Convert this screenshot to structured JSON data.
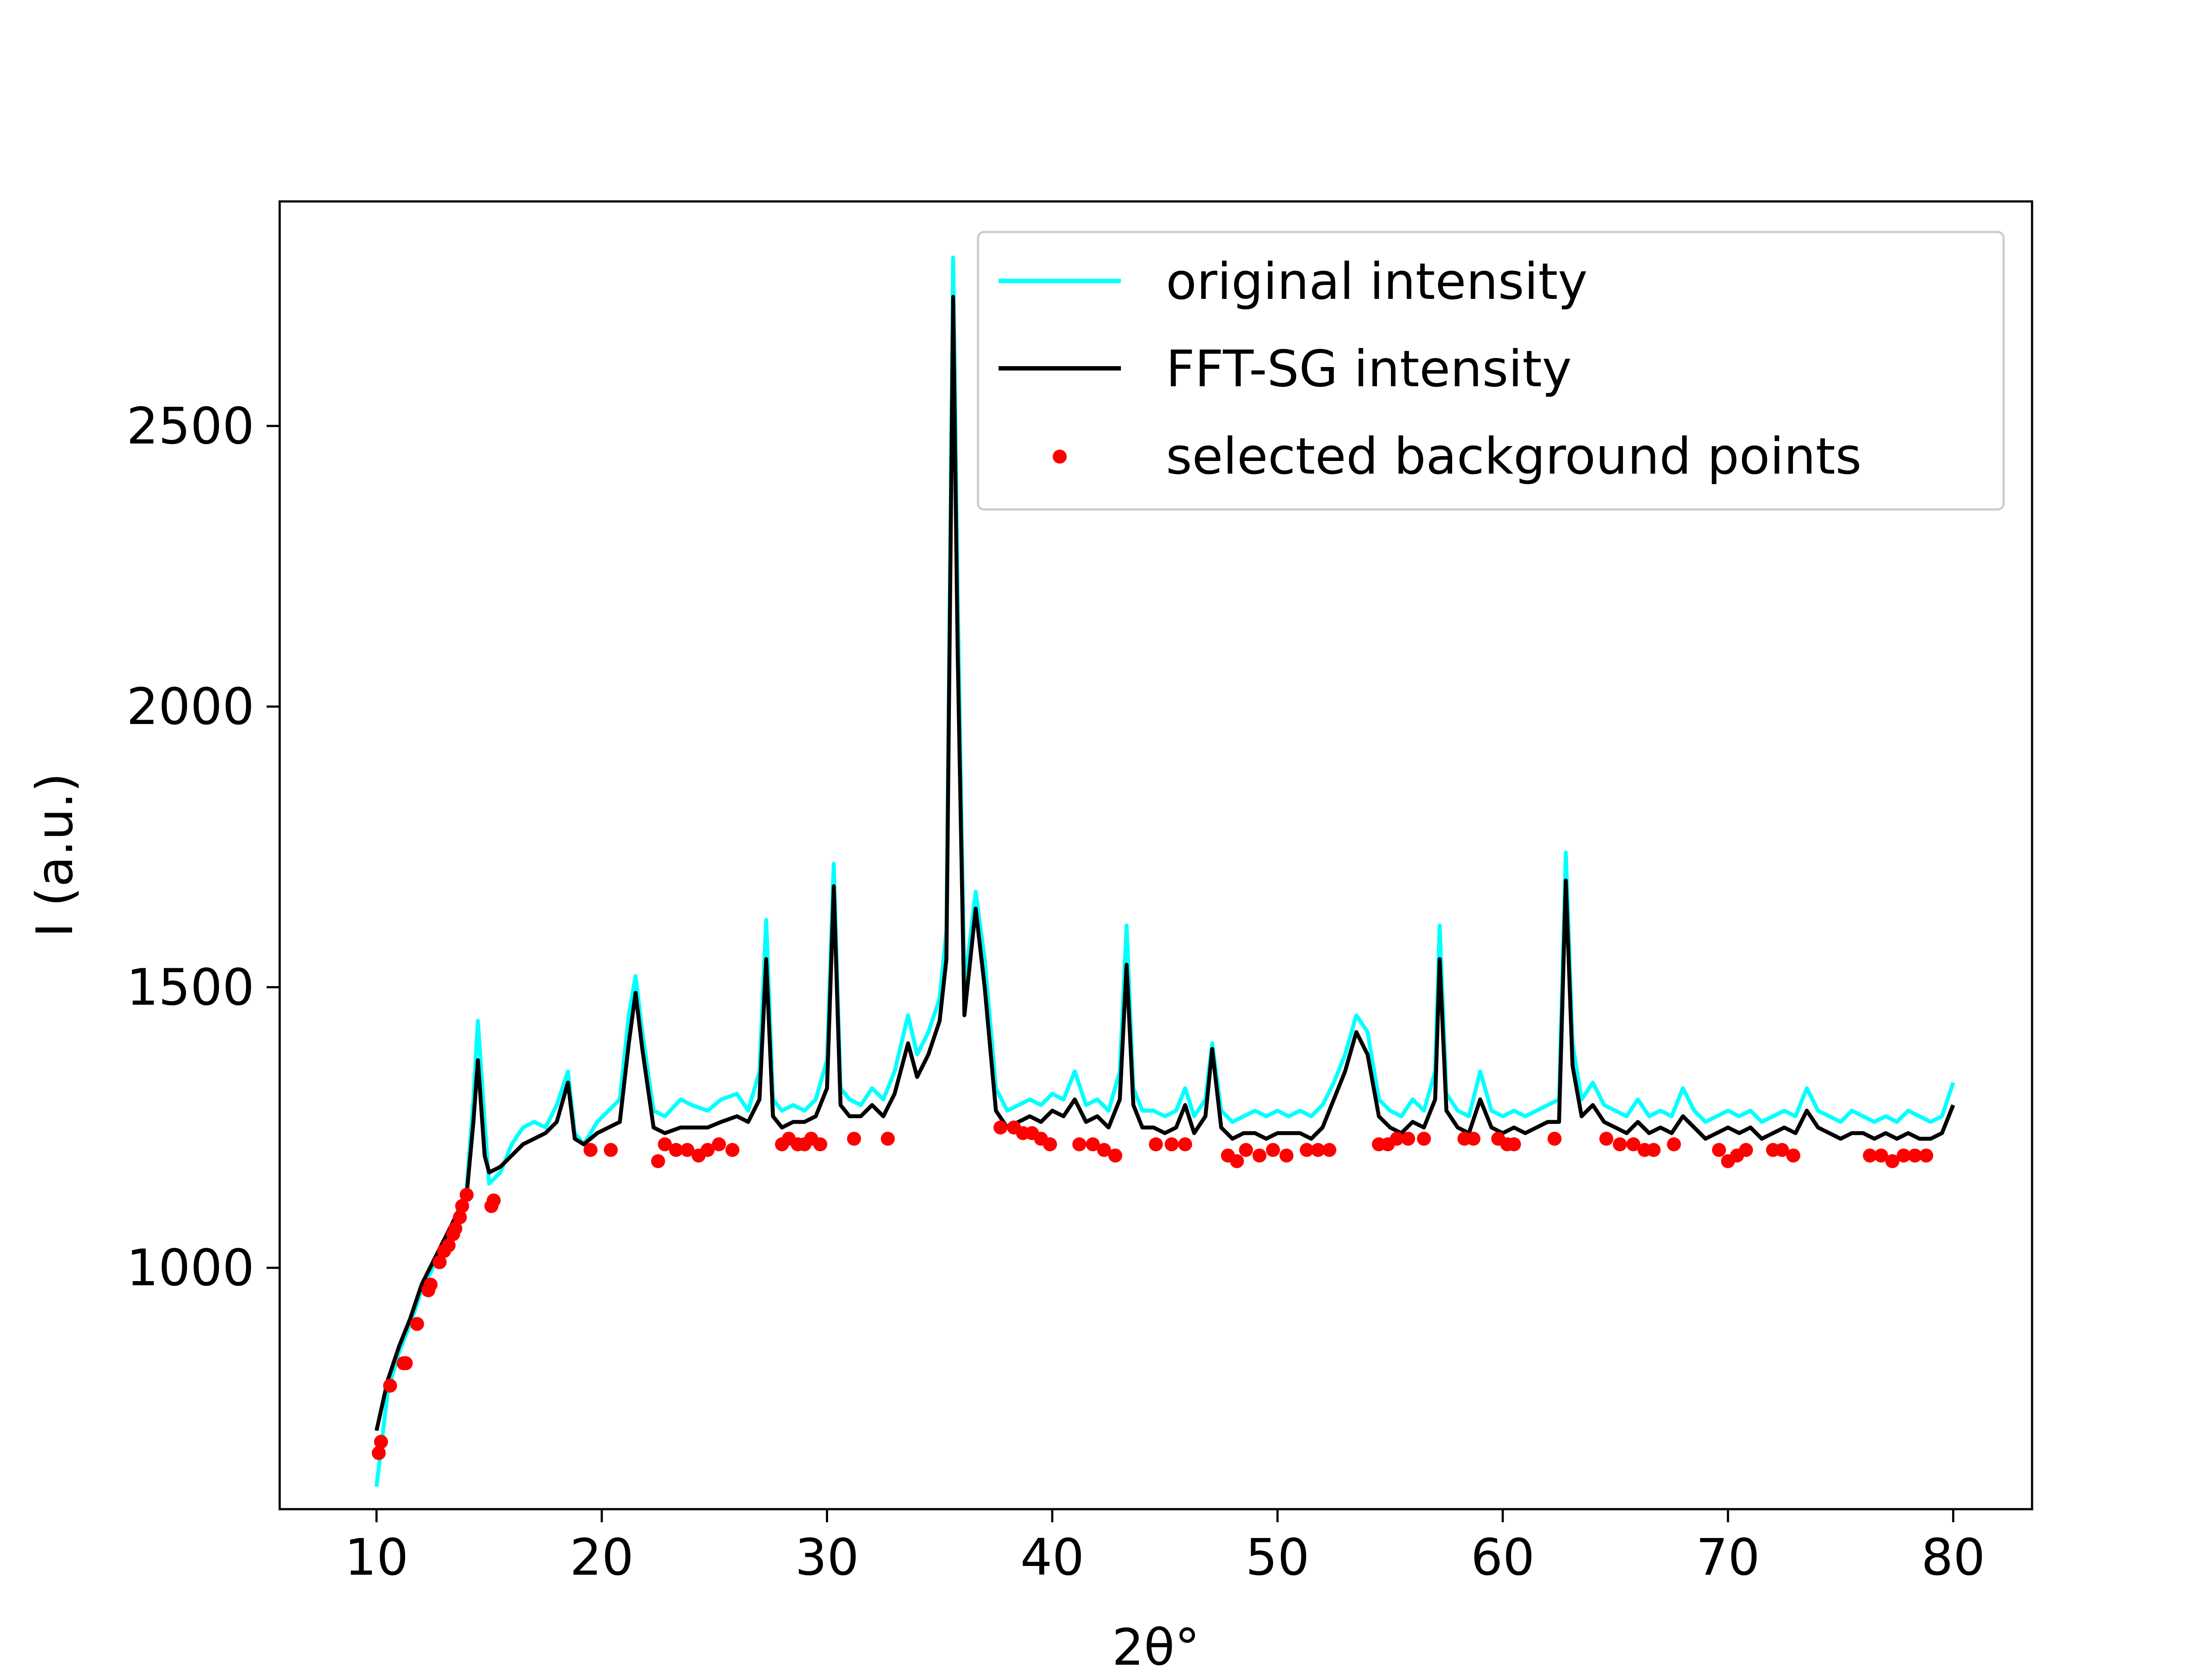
{
  "chart_data": {
    "type": "line",
    "title": "",
    "xlabel": "2θ°",
    "ylabel": "I (a.u.)",
    "xlim": [
      5.7,
      83.5
    ],
    "ylim": [
      570,
      2900
    ],
    "xticks": [
      10,
      20,
      30,
      40,
      50,
      60,
      70,
      80
    ],
    "yticks": [
      1000,
      1500,
      2000,
      2500
    ],
    "grid": false,
    "legend_position": "top-right",
    "series": [
      {
        "name": "original intensity",
        "kind": "line",
        "color": "#00ffff",
        "x": [
          10.0,
          10.5,
          11.0,
          11.5,
          12.0,
          12.5,
          13.0,
          13.5,
          14.0,
          14.3,
          14.5,
          14.8,
          15.0,
          15.5,
          16.0,
          16.5,
          17.0,
          17.5,
          18.0,
          18.5,
          18.8,
          19.2,
          19.8,
          20.3,
          20.8,
          21.2,
          21.5,
          21.8,
          22.3,
          22.8,
          23.5,
          24.0,
          24.7,
          25.3,
          26.0,
          26.5,
          27.0,
          27.3,
          27.6,
          28.0,
          28.5,
          29.0,
          29.5,
          30.0,
          30.3,
          30.6,
          31.0,
          31.5,
          32.0,
          32.5,
          33.0,
          33.6,
          34.0,
          34.5,
          35.0,
          35.3,
          35.6,
          35.8,
          36.1,
          36.6,
          37.0,
          37.5,
          38.0,
          38.5,
          39.0,
          39.5,
          40.0,
          40.5,
          41.0,
          41.5,
          42.0,
          42.5,
          43.0,
          43.3,
          43.6,
          44.0,
          44.5,
          45.0,
          45.5,
          45.9,
          46.3,
          46.8,
          47.1,
          47.5,
          48.0,
          48.5,
          49.0,
          49.5,
          50.0,
          50.5,
          51.0,
          51.5,
          52.0,
          52.5,
          53.0,
          53.5,
          54.0,
          54.5,
          55.0,
          55.5,
          56.0,
          56.5,
          57.0,
          57.2,
          57.5,
          58.0,
          58.5,
          59.0,
          59.5,
          60.0,
          60.5,
          61.0,
          61.5,
          62.0,
          62.5,
          62.8,
          63.1,
          63.5,
          64.0,
          64.5,
          65.0,
          65.5,
          66.0,
          66.5,
          67.0,
          67.5,
          68.0,
          68.5,
          69.0,
          69.5,
          70.0,
          70.5,
          71.0,
          71.5,
          72.0,
          72.5,
          73.0,
          73.5,
          74.0,
          74.5,
          75.0,
          75.5,
          76.0,
          76.5,
          77.0,
          77.5,
          78.0,
          78.5,
          79.0,
          79.5,
          80.0
        ],
        "y": [
          610,
          780,
          850,
          900,
          960,
          1000,
          1040,
          1090,
          1140,
          1300,
          1440,
          1260,
          1150,
          1170,
          1220,
          1250,
          1260,
          1250,
          1290,
          1350,
          1240,
          1220,
          1260,
          1280,
          1300,
          1450,
          1520,
          1420,
          1280,
          1270,
          1300,
          1290,
          1280,
          1300,
          1310,
          1280,
          1350,
          1620,
          1300,
          1280,
          1290,
          1280,
          1300,
          1370,
          1720,
          1320,
          1300,
          1290,
          1320,
          1300,
          1350,
          1450,
          1380,
          1420,
          1480,
          1600,
          2800,
          2200,
          1500,
          1670,
          1550,
          1320,
          1280,
          1290,
          1300,
          1290,
          1310,
          1300,
          1350,
          1290,
          1300,
          1280,
          1350,
          1610,
          1320,
          1280,
          1280,
          1270,
          1280,
          1320,
          1270,
          1300,
          1400,
          1280,
          1260,
          1270,
          1280,
          1270,
          1280,
          1270,
          1280,
          1270,
          1290,
          1330,
          1380,
          1450,
          1420,
          1300,
          1280,
          1270,
          1300,
          1280,
          1350,
          1610,
          1310,
          1280,
          1270,
          1350,
          1280,
          1270,
          1280,
          1270,
          1280,
          1290,
          1300,
          1740,
          1400,
          1300,
          1330,
          1290,
          1280,
          1270,
          1300,
          1270,
          1280,
          1270,
          1320,
          1280,
          1260,
          1270,
          1280,
          1270,
          1280,
          1260,
          1270,
          1280,
          1270,
          1320,
          1280,
          1270,
          1260,
          1280,
          1270,
          1260,
          1270,
          1260,
          1280,
          1270,
          1260,
          1270,
          1330
        ]
      },
      {
        "name": "FFT-SG intensity",
        "kind": "line",
        "color": "#000000",
        "x": [
          10.0,
          10.5,
          11.0,
          11.5,
          12.0,
          12.5,
          13.0,
          13.5,
          14.0,
          14.3,
          14.5,
          14.8,
          15.0,
          15.5,
          16.0,
          16.5,
          17.0,
          17.5,
          18.0,
          18.5,
          18.8,
          19.2,
          19.8,
          20.3,
          20.8,
          21.2,
          21.5,
          21.8,
          22.3,
          22.8,
          23.5,
          24.0,
          24.7,
          25.3,
          26.0,
          26.5,
          27.0,
          27.3,
          27.6,
          28.0,
          28.5,
          29.0,
          29.5,
          30.0,
          30.3,
          30.6,
          31.0,
          31.5,
          32.0,
          32.5,
          33.0,
          33.6,
          34.0,
          34.5,
          35.0,
          35.3,
          35.6,
          35.8,
          36.1,
          36.6,
          37.0,
          37.5,
          38.0,
          38.5,
          39.0,
          39.5,
          40.0,
          40.5,
          41.0,
          41.5,
          42.0,
          42.5,
          43.0,
          43.3,
          43.6,
          44.0,
          44.5,
          45.0,
          45.5,
          45.9,
          46.3,
          46.8,
          47.1,
          47.5,
          48.0,
          48.5,
          49.0,
          49.5,
          50.0,
          50.5,
          51.0,
          51.5,
          52.0,
          52.5,
          53.0,
          53.5,
          54.0,
          54.5,
          55.0,
          55.5,
          56.0,
          56.5,
          57.0,
          57.2,
          57.5,
          58.0,
          58.5,
          59.0,
          59.5,
          60.0,
          60.5,
          61.0,
          61.5,
          62.0,
          62.5,
          62.8,
          63.1,
          63.5,
          64.0,
          64.5,
          65.0,
          65.5,
          66.0,
          66.5,
          67.0,
          67.5,
          68.0,
          68.5,
          69.0,
          69.5,
          70.0,
          70.5,
          71.0,
          71.5,
          72.0,
          72.5,
          73.0,
          73.5,
          74.0,
          74.5,
          75.0,
          75.5,
          76.0,
          76.5,
          77.0,
          77.5,
          78.0,
          78.5,
          79.0,
          79.5,
          80.0
        ],
        "y": [
          710,
          800,
          860,
          910,
          970,
          1010,
          1050,
          1090,
          1130,
          1260,
          1370,
          1200,
          1170,
          1180,
          1200,
          1220,
          1230,
          1240,
          1260,
          1330,
          1230,
          1220,
          1240,
          1250,
          1260,
          1400,
          1490,
          1390,
          1250,
          1240,
          1250,
          1250,
          1250,
          1260,
          1270,
          1260,
          1300,
          1550,
          1270,
          1250,
          1260,
          1260,
          1270,
          1320,
          1680,
          1290,
          1270,
          1270,
          1290,
          1270,
          1310,
          1400,
          1340,
          1380,
          1440,
          1550,
          2730,
          2100,
          1450,
          1640,
          1500,
          1280,
          1250,
          1260,
          1270,
          1260,
          1280,
          1270,
          1300,
          1260,
          1270,
          1250,
          1300,
          1540,
          1290,
          1250,
          1250,
          1240,
          1250,
          1290,
          1240,
          1270,
          1390,
          1250,
          1230,
          1240,
          1240,
          1230,
          1240,
          1240,
          1240,
          1230,
          1250,
          1300,
          1350,
          1420,
          1380,
          1270,
          1250,
          1240,
          1260,
          1250,
          1300,
          1550,
          1280,
          1250,
          1240,
          1300,
          1250,
          1240,
          1250,
          1240,
          1250,
          1260,
          1260,
          1690,
          1360,
          1270,
          1290,
          1260,
          1250,
          1240,
          1260,
          1240,
          1250,
          1240,
          1270,
          1250,
          1230,
          1240,
          1250,
          1240,
          1250,
          1230,
          1240,
          1250,
          1240,
          1280,
          1250,
          1240,
          1230,
          1240,
          1240,
          1230,
          1240,
          1230,
          1240,
          1230,
          1230,
          1240,
          1290
        ]
      },
      {
        "name": "selected background points",
        "kind": "scatter",
        "color": "#ff0000",
        "x": [
          10.1,
          10.2,
          10.6,
          11.2,
          11.3,
          11.8,
          12.3,
          12.4,
          12.8,
          13.0,
          13.2,
          13.4,
          13.5,
          13.7,
          13.8,
          14.0,
          15.1,
          15.2,
          19.5,
          20.4,
          22.5,
          22.8,
          23.3,
          23.8,
          24.3,
          24.7,
          25.2,
          25.8,
          28.0,
          28.3,
          28.7,
          29.0,
          29.3,
          29.7,
          31.2,
          32.7,
          37.7,
          38.3,
          38.7,
          39.1,
          39.5,
          39.9,
          41.2,
          41.8,
          42.3,
          42.8,
          44.6,
          45.3,
          45.9,
          47.8,
          48.2,
          48.6,
          49.2,
          49.8,
          50.4,
          51.3,
          51.8,
          52.3,
          54.5,
          54.9,
          55.3,
          55.8,
          56.5,
          58.3,
          58.7,
          59.8,
          60.2,
          60.5,
          62.3,
          64.6,
          65.2,
          65.8,
          66.3,
          66.7,
          67.6,
          69.6,
          70.0,
          70.4,
          70.8,
          72.0,
          72.4,
          72.9,
          76.3,
          76.8,
          77.3,
          77.8,
          78.3,
          78.8
        ],
        "y": [
          670,
          690,
          790,
          830,
          830,
          900,
          960,
          970,
          1010,
          1030,
          1040,
          1060,
          1070,
          1090,
          1110,
          1130,
          1110,
          1120,
          1210,
          1210,
          1190,
          1220,
          1210,
          1210,
          1200,
          1210,
          1220,
          1210,
          1220,
          1230,
          1220,
          1220,
          1230,
          1220,
          1230,
          1230,
          1250,
          1250,
          1240,
          1240,
          1230,
          1220,
          1220,
          1220,
          1210,
          1200,
          1220,
          1220,
          1220,
          1200,
          1190,
          1210,
          1200,
          1210,
          1200,
          1210,
          1210,
          1210,
          1220,
          1220,
          1230,
          1230,
          1230,
          1230,
          1230,
          1230,
          1220,
          1220,
          1230,
          1230,
          1220,
          1220,
          1210,
          1210,
          1220,
          1210,
          1190,
          1200,
          1210,
          1210,
          1210,
          1200,
          1200,
          1200,
          1190,
          1200,
          1200,
          1200
        ]
      }
    ]
  }
}
